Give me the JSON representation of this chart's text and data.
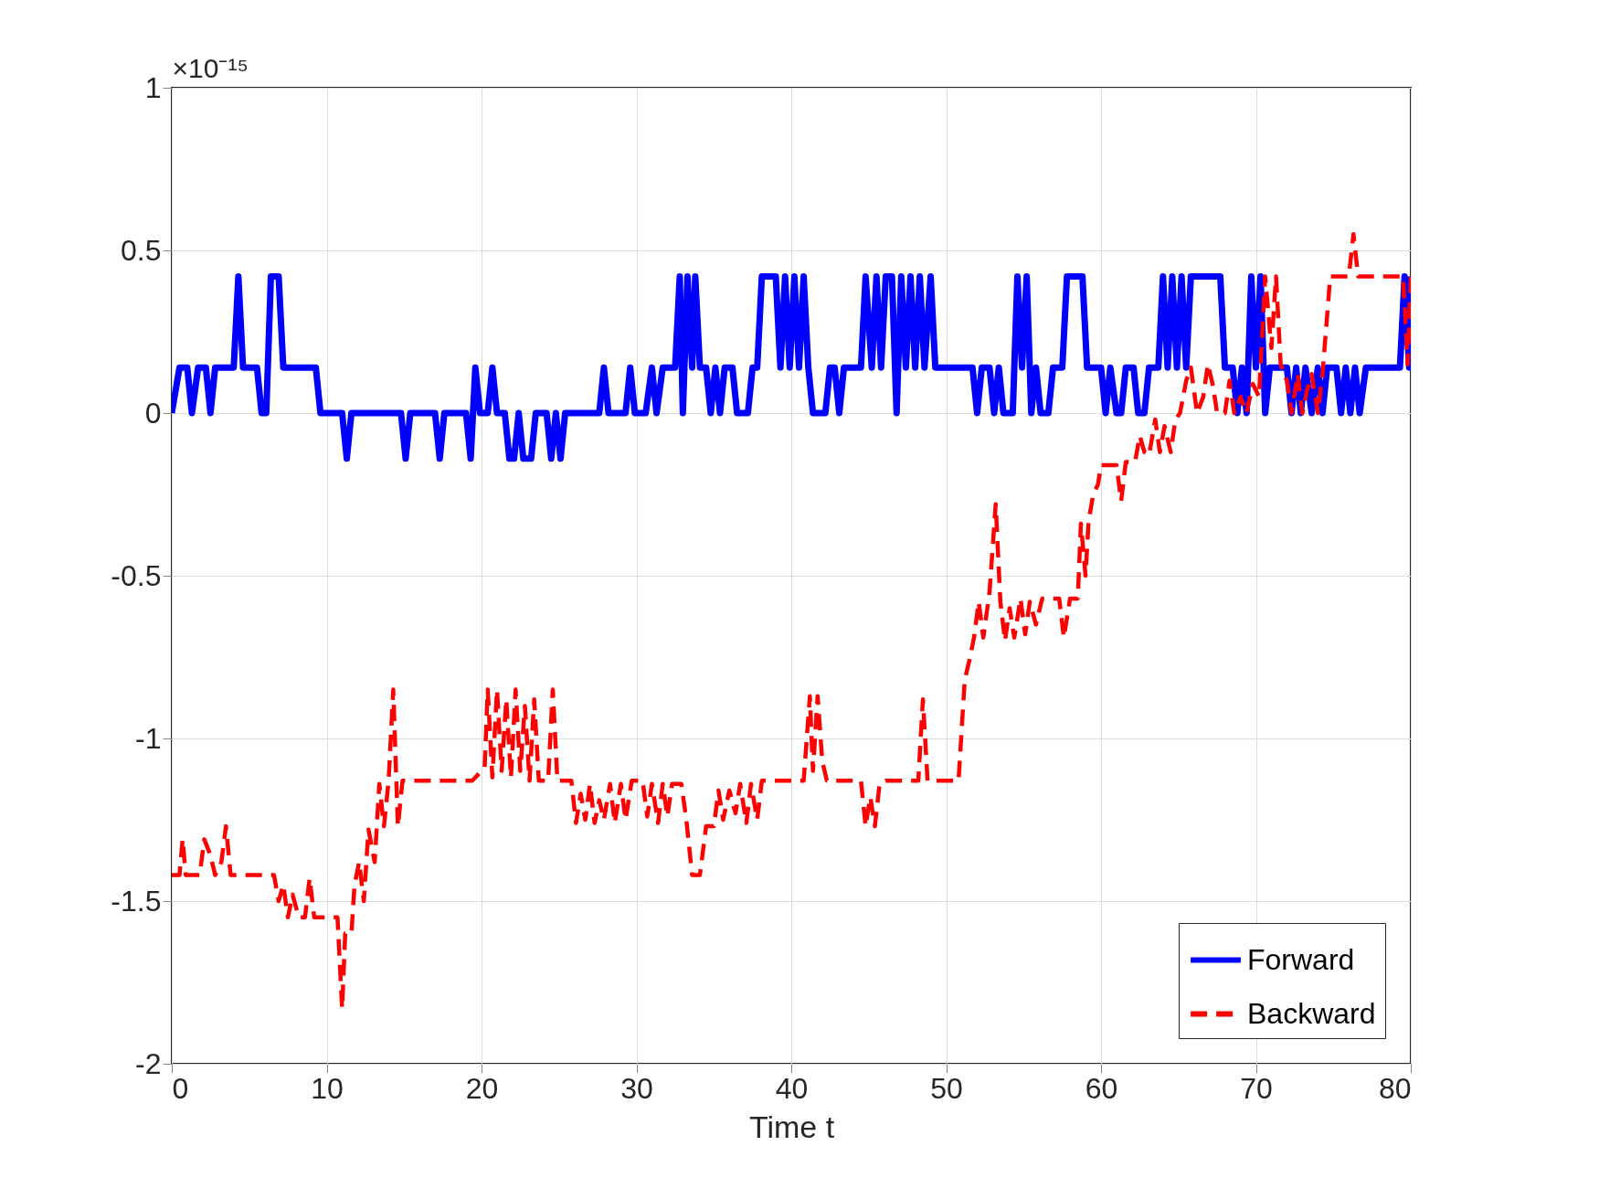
{
  "chart_data": {
    "type": "line",
    "xlabel": "Time t",
    "annotations": [
      "×10⁻¹⁵"
    ],
    "xlim": [
      0,
      80
    ],
    "xticks": [
      0,
      10,
      20,
      30,
      40,
      50,
      60,
      70,
      80
    ],
    "ylim": [
      -2,
      1
    ],
    "yticks": [
      -2,
      -1.5,
      -1,
      -0.5,
      0,
      0.5,
      1
    ],
    "grid": true,
    "legend": "bottom right",
    "series": [
      {
        "name": "Forward",
        "color": "#0000ff",
        "line_style": "solid",
        "x": [
          0,
          0.5,
          1,
          1.3,
          1.7,
          2.2,
          2.5,
          2.8,
          4,
          4.3,
          4.6,
          5.5,
          5.8,
          6.1,
          6.4,
          6.9,
          7.2,
          9.3,
          9.6,
          11,
          11.3,
          11.6,
          14.8,
          15.1,
          15.4,
          17,
          17.3,
          17.6,
          19,
          19.3,
          19.6,
          19.9,
          20.4,
          20.7,
          21,
          21.5,
          21.8,
          22.1,
          22.4,
          22.7,
          23.2,
          23.5,
          24.2,
          24.5,
          24.8,
          25.1,
          25.4,
          27.6,
          27.9,
          28.2,
          29.3,
          29.6,
          29.9,
          30.6,
          31,
          31.3,
          31.7,
          32.5,
          32.8,
          33,
          33.3,
          33.6,
          33.8,
          34.1,
          34.5,
          34.8,
          35.1,
          35.4,
          35.7,
          36.2,
          36.5,
          37.2,
          37.5,
          37.8,
          38.1,
          39,
          39.3,
          39.6,
          39.9,
          40.2,
          40.5,
          40.8,
          41.1,
          41.4,
          42.2,
          42.5,
          42.8,
          43.1,
          43.4,
          44.5,
          44.8,
          45.2,
          45.5,
          45.8,
          46.1,
          46.5,
          46.8,
          47.1,
          47.4,
          47.7,
          48,
          48.3,
          48.6,
          49,
          49.3,
          51.7,
          52,
          52.3,
          52.8,
          53.1,
          53.4,
          53.7,
          54.3,
          54.6,
          54.9,
          55.2,
          55.5,
          55.8,
          56.1,
          56.6,
          56.9,
          57.5,
          57.8,
          58.8,
          59.1,
          60,
          60.3,
          60.6,
          61,
          61.3,
          61.6,
          62.1,
          62.4,
          62.8,
          63.1,
          63.7,
          64,
          64.3,
          64.6,
          64.9,
          65.2,
          65.5,
          65.8,
          67.7,
          68,
          68.5,
          68.8,
          69.1,
          69.4,
          69.7,
          70,
          70.3,
          70.6,
          70.9,
          72,
          72.3,
          72.6,
          72.9,
          73.2,
          73.6,
          74,
          74.3,
          74.6,
          75.2,
          75.5,
          75.8,
          76.1,
          76.4,
          76.7,
          77.1,
          79.3,
          79.6,
          79.9,
          80
        ],
        "values": [
          0,
          0.14,
          0.14,
          0,
          0.14,
          0.14,
          0,
          0.14,
          0.14,
          0.42,
          0.14,
          0.14,
          0,
          0,
          0.42,
          0.42,
          0.14,
          0.14,
          0,
          0,
          -0.14,
          0,
          0,
          -0.14,
          0,
          0,
          -0.14,
          0,
          0,
          -0.14,
          0.14,
          0,
          0,
          0.14,
          0,
          0,
          -0.14,
          -0.14,
          0,
          -0.14,
          -0.14,
          0,
          0,
          -0.14,
          0,
          -0.14,
          0,
          0,
          0.14,
          0,
          0,
          0.14,
          0,
          0,
          0.14,
          0,
          0.14,
          0.14,
          0.42,
          0,
          0.42,
          0.14,
          0.42,
          0.14,
          0.14,
          0,
          0.14,
          0,
          0.14,
          0.14,
          0,
          0,
          0.14,
          0.14,
          0.42,
          0.42,
          0.14,
          0.42,
          0.14,
          0.42,
          0.14,
          0.42,
          0.14,
          0,
          0,
          0.14,
          0.14,
          0,
          0.14,
          0.14,
          0.42,
          0.14,
          0.42,
          0.14,
          0.42,
          0.42,
          0,
          0.42,
          0.14,
          0.42,
          0.14,
          0.42,
          0.14,
          0.42,
          0.14,
          0.14,
          0,
          0.14,
          0.14,
          0,
          0.14,
          0,
          0,
          0.42,
          0.14,
          0.42,
          0,
          0.14,
          0,
          0,
          0.14,
          0.14,
          0.42,
          0.42,
          0.14,
          0.14,
          0,
          0.14,
          0,
          0,
          0.14,
          0.14,
          0,
          0,
          0.14,
          0.14,
          0.42,
          0.14,
          0.42,
          0.14,
          0.42,
          0.14,
          0.42,
          0.42,
          0.14,
          0.14,
          0,
          0.14,
          0,
          0.42,
          0.14,
          0.42,
          0,
          0.14,
          0.14,
          0,
          0.14,
          0,
          0.14,
          0,
          0.14,
          0,
          0.14,
          0.14,
          0,
          0.14,
          0,
          0.14,
          0,
          0.14,
          0.14,
          0.42,
          0.14,
          0.42
        ]
      },
      {
        "name": "Backward",
        "color": "#ff0000",
        "line_style": "dashed",
        "x": [
          0,
          0.5,
          0.7,
          0.9,
          1.8,
          2.1,
          2.5,
          2.8,
          3.2,
          3.5,
          3.8,
          6.6,
          6.9,
          7.2,
          7.5,
          7.8,
          8.2,
          8.6,
          8.9,
          9.2,
          10.7,
          11,
          11.2,
          11.6,
          11.8,
          12.1,
          12.4,
          12.7,
          13.1,
          13.4,
          13.7,
          14,
          14.3,
          14.6,
          14.9,
          19.4,
          20.2,
          20.4,
          20.7,
          21,
          21.3,
          21.6,
          21.9,
          22.2,
          22.5,
          22.8,
          23.1,
          23.4,
          23.7,
          24.3,
          24.6,
          24.9,
          25.8,
          26.1,
          26.4,
          26.7,
          27,
          27.3,
          27.6,
          27.9,
          28.3,
          28.6,
          29,
          29.3,
          29.7,
          30.4,
          30.7,
          31,
          31.4,
          31.7,
          32,
          32.3,
          32.9,
          33.2,
          33.6,
          34.1,
          34.5,
          35,
          35.3,
          35.6,
          36,
          36.4,
          36.7,
          37.1,
          37.4,
          37.8,
          38.1,
          40.8,
          41.2,
          41.4,
          41.7,
          42,
          42.3,
          44.5,
          44.8,
          45.1,
          45.4,
          45.7,
          46.1,
          48.2,
          48.5,
          48.8,
          50.8,
          51.2,
          51.5,
          51.8,
          52.1,
          52.4,
          52.8,
          53.2,
          53.5,
          53.8,
          54.1,
          54.4,
          54.8,
          55.1,
          55.4,
          55.8,
          56.2,
          57.3,
          57.6,
          58,
          58.5,
          58.7,
          59,
          59.2,
          59.5,
          59.8,
          60,
          61,
          61.3,
          61.6,
          62.2,
          62.5,
          62.8,
          63.1,
          63.5,
          63.8,
          64.1,
          64.5,
          64.8,
          65.1,
          65.5,
          65.8,
          66.2,
          66.6,
          66.9,
          67.2,
          67.5,
          68,
          68.3,
          68.6,
          69,
          69.4,
          69.8,
          70.2,
          70.6,
          71,
          71.3,
          71.6,
          72,
          72.3,
          72.7,
          73,
          73.3,
          73.6,
          74,
          74.3,
          74.8,
          76,
          76.3,
          76.6,
          79.5,
          79.8,
          80
        ],
        "values": [
          -1.42,
          -1.42,
          -1.31,
          -1.42,
          -1.42,
          -1.31,
          -1.36,
          -1.42,
          -1.38,
          -1.27,
          -1.42,
          -1.42,
          -1.5,
          -1.45,
          -1.55,
          -1.48,
          -1.55,
          -1.55,
          -1.43,
          -1.55,
          -1.55,
          -1.83,
          -1.6,
          -1.6,
          -1.45,
          -1.38,
          -1.5,
          -1.28,
          -1.38,
          -1.14,
          -1.27,
          -1.13,
          -0.85,
          -1.27,
          -1.13,
          -1.13,
          -1.09,
          -0.85,
          -1.12,
          -0.85,
          -1.1,
          -0.88,
          -1.12,
          -0.85,
          -1.1,
          -0.9,
          -1.13,
          -0.88,
          -1.13,
          -1.13,
          -0.85,
          -1.13,
          -1.13,
          -1.26,
          -1.17,
          -1.25,
          -1.14,
          -1.26,
          -1.19,
          -1.25,
          -1.14,
          -1.26,
          -1.14,
          -1.25,
          -1.13,
          -1.13,
          -1.24,
          -1.14,
          -1.26,
          -1.14,
          -1.24,
          -1.14,
          -1.14,
          -1.24,
          -1.42,
          -1.42,
          -1.27,
          -1.27,
          -1.16,
          -1.25,
          -1.16,
          -1.23,
          -1.14,
          -1.26,
          -1.14,
          -1.25,
          -1.13,
          -1.13,
          -0.87,
          -1.1,
          -0.87,
          -1.07,
          -1.13,
          -1.13,
          -1.27,
          -1.18,
          -1.27,
          -1.14,
          -1.13,
          -1.13,
          -0.88,
          -1.13,
          -1.13,
          -0.82,
          -0.76,
          -0.69,
          -0.58,
          -0.69,
          -0.55,
          -0.28,
          -0.58,
          -0.7,
          -0.6,
          -0.69,
          -0.57,
          -0.68,
          -0.58,
          -0.65,
          -0.57,
          -0.57,
          -0.69,
          -0.57,
          -0.57,
          -0.34,
          -0.5,
          -0.33,
          -0.25,
          -0.22,
          -0.16,
          -0.16,
          -0.27,
          -0.15,
          -0.15,
          -0.07,
          -0.12,
          -0.13,
          -0.02,
          -0.12,
          -0.04,
          -0.12,
          -0.02,
          0,
          0.1,
          0.14,
          0,
          0.05,
          0.15,
          0.09,
          0,
          0,
          0.1,
          0,
          0.05,
          0,
          0.09,
          0.05,
          0.42,
          0.2,
          0.42,
          0.15,
          0.1,
          0,
          0.12,
          0,
          0.07,
          0.12,
          0,
          0.12,
          0.42,
          0.42,
          0.55,
          0.42,
          0.42,
          0.15,
          0.42
        ]
      }
    ]
  }
}
